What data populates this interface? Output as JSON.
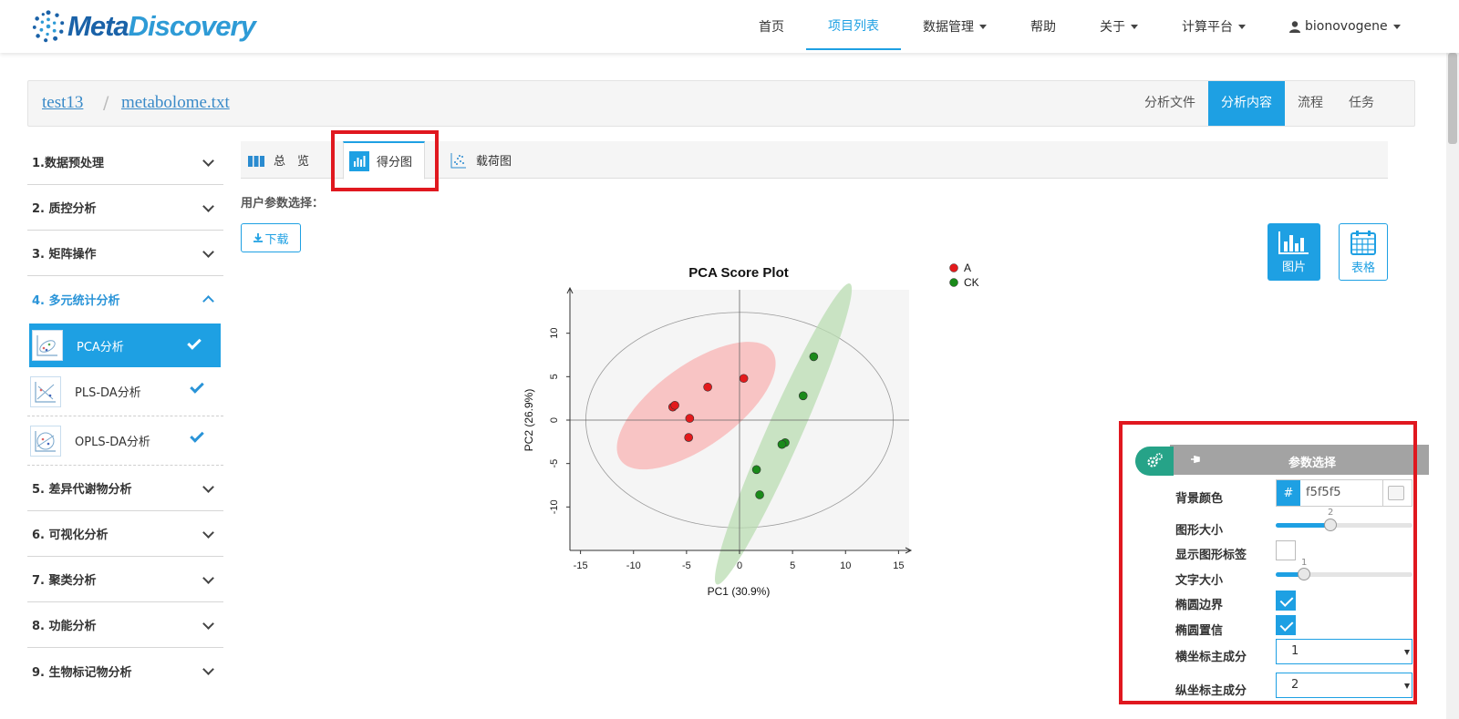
{
  "brand": {
    "part1": "Meta",
    "part2": "Discovery"
  },
  "nav": {
    "items": [
      {
        "label": "首页",
        "dropdown": false,
        "active": false
      },
      {
        "label": "项目列表",
        "dropdown": false,
        "active": true
      },
      {
        "label": "数据管理",
        "dropdown": true,
        "active": false
      },
      {
        "label": "帮助",
        "dropdown": false,
        "active": false
      },
      {
        "label": "关于",
        "dropdown": true,
        "active": false
      },
      {
        "label": "计算平台",
        "dropdown": true,
        "active": false
      }
    ],
    "user": "bionovogene"
  },
  "breadcrumb": {
    "project": "test13",
    "separator": "/",
    "file": "metabolome.txt",
    "tabs": [
      "分析文件",
      "分析内容",
      "流程",
      "任务"
    ],
    "active_tab": "分析内容"
  },
  "sidebar": {
    "items": [
      {
        "label": "1.数据预处理"
      },
      {
        "label": "2. 质控分析"
      },
      {
        "label": "3. 矩阵操作"
      },
      {
        "label": "4. 多元统计分析"
      },
      {
        "label": "5. 差异代谢物分析"
      },
      {
        "label": "6. 可视化分析"
      },
      {
        "label": "7. 聚类分析"
      },
      {
        "label": "8. 功能分析"
      },
      {
        "label": "9. 生物标记物分析"
      }
    ],
    "subitems": [
      {
        "label": "PCA分析"
      },
      {
        "label": "PLS-DA分析"
      },
      {
        "label": "OPLS-DA分析"
      }
    ]
  },
  "content_tabs": {
    "overview": "总　览",
    "score": "得分图",
    "loading": "载荷图"
  },
  "user_params_label": "用户参数选择：",
  "download_label": "下载",
  "view_buttons": {
    "image": "图片",
    "table": "表格"
  },
  "chart_data": {
    "type": "scatter",
    "title": "PCA Score Plot",
    "xlabel": "PC1 (30.9%)",
    "ylabel": "PC2 (26.9%)",
    "xlim": [
      -16,
      16
    ],
    "ylim": [
      -15,
      15
    ],
    "xticks": [
      -15,
      -10,
      -5,
      0,
      5,
      10,
      15
    ],
    "yticks": [
      -10,
      -5,
      0,
      5,
      10
    ],
    "grid": false,
    "legend_position": "top-right",
    "series": [
      {
        "name": "A",
        "color": "#e31a1c",
        "ellipse_color": "#f8b3b3",
        "points": [
          [
            -6.3,
            1.5
          ],
          [
            -6.1,
            1.7
          ],
          [
            -3.0,
            3.8
          ],
          [
            0.4,
            4.8
          ],
          [
            -4.7,
            0.2
          ],
          [
            -4.8,
            -2.0
          ]
        ]
      },
      {
        "name": "CK",
        "color": "#1a8a1a",
        "ellipse_color": "#b9dcb2",
        "points": [
          [
            7.0,
            7.3
          ],
          [
            6.0,
            2.8
          ],
          [
            4.3,
            -2.6
          ],
          [
            4.0,
            -2.8
          ],
          [
            1.6,
            -5.7
          ],
          [
            1.9,
            -8.6
          ]
        ]
      }
    ]
  },
  "param_panel": {
    "title": "参数选择",
    "bg_color_label": "背景颜色",
    "bg_color_hash": "#",
    "bg_color_value": "f5f5f5",
    "size_label": "图形大小",
    "size_value": "2",
    "show_labels_label": "显示图形标签",
    "font_size_label": "文字大小",
    "font_size_value": "1",
    "ellipse_border_label": "椭圆边界",
    "ellipse_conf_label": "椭圆置信",
    "x_pc_label": "横坐标主成分",
    "x_pc_value": "1",
    "y_pc_label": "纵坐标主成分",
    "y_pc_value": "2"
  }
}
